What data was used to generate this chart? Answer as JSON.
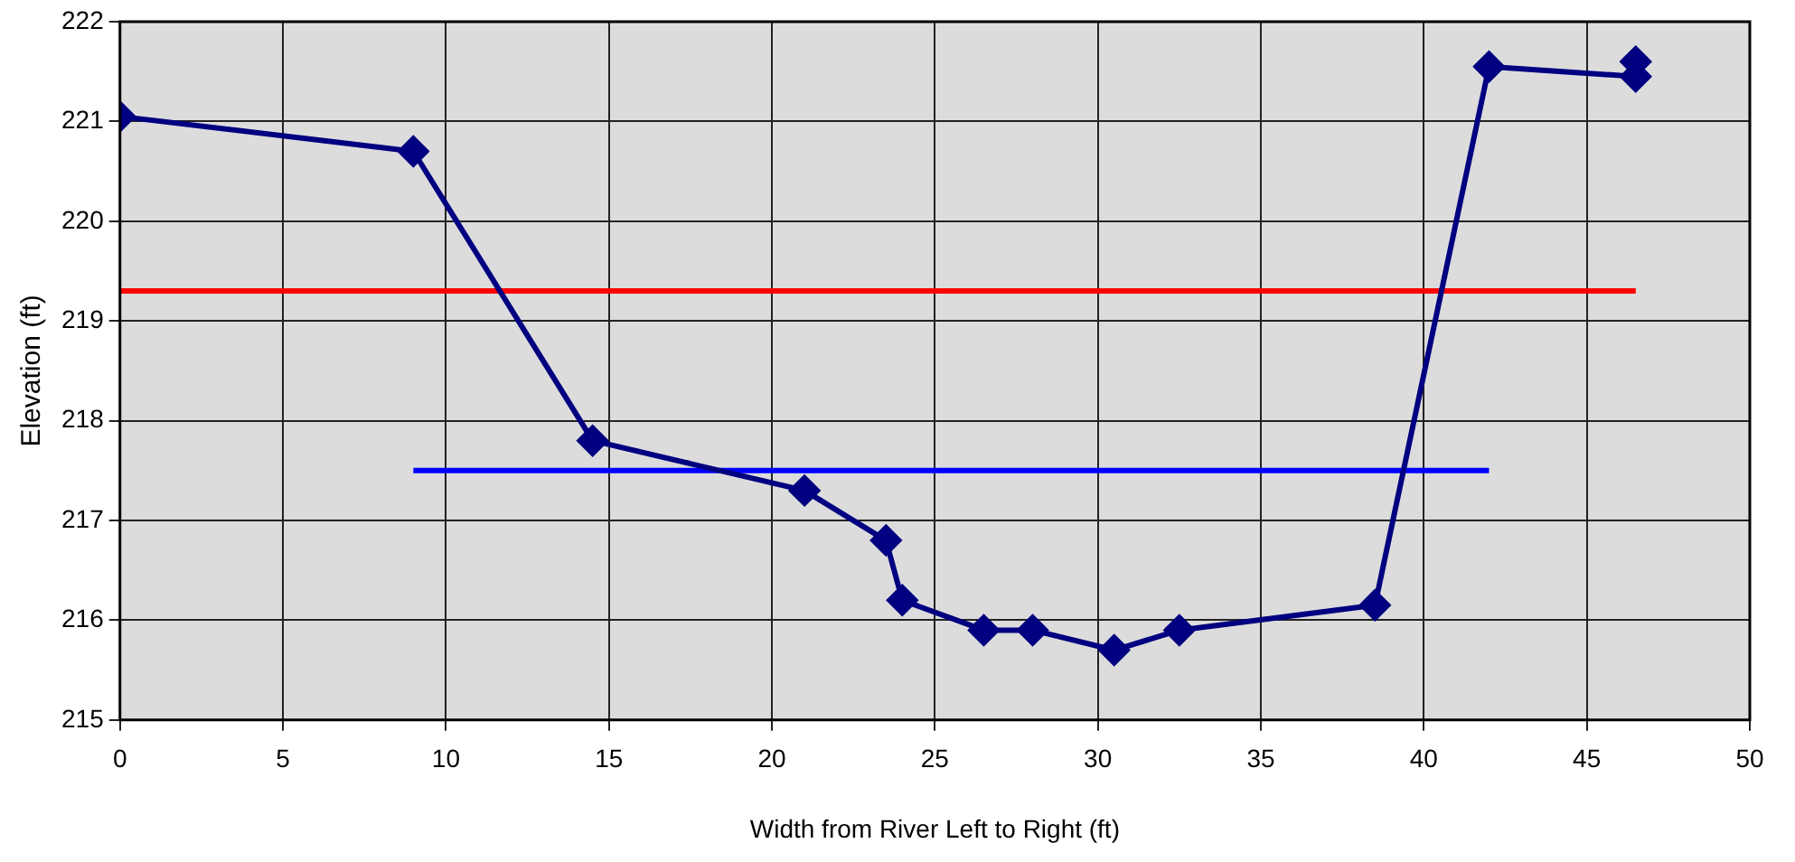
{
  "chart_data": {
    "type": "line",
    "xlabel": "Width from River Left to Right (ft)",
    "ylabel": "Elevation (ft)",
    "xlim": [
      0,
      50
    ],
    "xticks": [
      0,
      5,
      10,
      15,
      20,
      25,
      30,
      35,
      40,
      45,
      50
    ],
    "ylim": [
      215,
      222
    ],
    "yticks": [
      215,
      216,
      217,
      218,
      219,
      220,
      221,
      222
    ],
    "grid": true,
    "legend": false,
    "marker": "diamond",
    "line_style": "solid",
    "series": [
      {
        "color": "#000080",
        "x": [
          0,
          9,
          14.5,
          21,
          23.5,
          24,
          26.5,
          28,
          30.5,
          32.5,
          38.5,
          42,
          46.5,
          46.5
        ],
        "values": [
          221.05,
          220.7,
          217.8,
          217.3,
          216.8,
          216.2,
          215.9,
          215.9,
          215.7,
          215.9,
          216.15,
          221.55,
          221.45,
          221.6
        ]
      },
      {
        "color": "#ff0000",
        "marker": "none",
        "x": [
          0,
          46.5
        ],
        "values": [
          219.3,
          219.3
        ]
      },
      {
        "color": "#0000ff",
        "marker": "none",
        "x": [
          9,
          42
        ],
        "values": [
          217.5,
          217.5
        ]
      }
    ]
  }
}
